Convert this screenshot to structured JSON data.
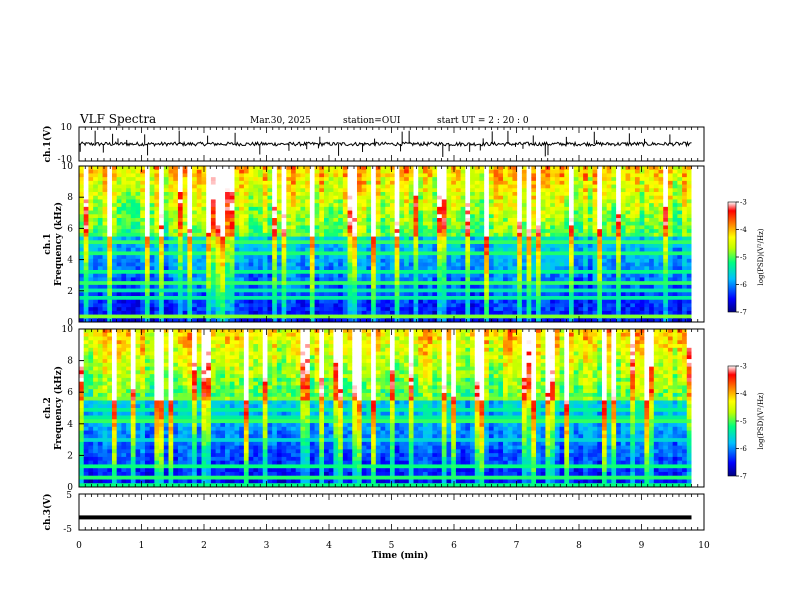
{
  "header": {
    "title": "VLF Spectra",
    "date": "Mar.30, 2025",
    "station": "station=OUI",
    "start_ut": "start  UT =   2 : 20 : 0"
  },
  "chart_data": [
    {
      "type": "line",
      "panel": "ch1-waveform",
      "ylabel": "ch.1(V)",
      "ylim": [
        -10,
        10
      ],
      "y_ticks": [
        "10",
        "-10"
      ],
      "x_range_min": [
        0,
        9.8
      ],
      "baseline_v": 0,
      "color": "#000000"
    },
    {
      "type": "heatmap",
      "panel": "ch1-spectrogram",
      "ylabel": "ch.1 Frequency (kHz)",
      "ylabel_lines": [
        "ch.1",
        "Frequency (kHz)"
      ],
      "ylim": [
        0,
        10
      ],
      "y_ticks": [
        "0",
        "2",
        "4",
        "6",
        "8",
        "10"
      ],
      "x_range_min": [
        0,
        9.8
      ],
      "colorbar": {
        "label": "log(PSD)(V²/Hz)",
        "range": [
          -7,
          -3
        ],
        "ticks": [
          "-3",
          "-4",
          "-5",
          "-6",
          "-7"
        ],
        "colormap": [
          "#000080",
          "#0000ff",
          "#00c0ff",
          "#00ff80",
          "#c0ff00",
          "#ffff00",
          "#ff8000",
          "#ff0000",
          "#ffffff"
        ]
      }
    },
    {
      "type": "heatmap",
      "panel": "ch2-spectrogram",
      "ylabel": "ch.2 Frequency (kHz)",
      "ylabel_lines": [
        "ch.2",
        "Frequency (kHz)"
      ],
      "ylim": [
        0,
        10
      ],
      "y_ticks": [
        "0",
        "2",
        "4",
        "6",
        "8",
        "10"
      ],
      "x_range_min": [
        0,
        9.8
      ],
      "colorbar": {
        "label": "log(PSD)(V²/Hz)",
        "range": [
          -7,
          -3
        ],
        "ticks": [
          "-3",
          "-4",
          "-5",
          "-6",
          "-7"
        ],
        "colormap": [
          "#000080",
          "#0000ff",
          "#00c0ff",
          "#00ff80",
          "#c0ff00",
          "#ffff00",
          "#ff8000",
          "#ff0000",
          "#ffffff"
        ]
      }
    },
    {
      "type": "line",
      "panel": "ch3-waveform",
      "ylabel": "ch.3(V)",
      "ylim": [
        -5,
        5
      ],
      "y_ticks": [
        "5",
        "-5"
      ],
      "x_range_min": [
        0,
        9.8
      ],
      "baseline_v": -1.5,
      "color": "#000000"
    }
  ],
  "x_axis": {
    "label": "Time (min)",
    "range": [
      0,
      10
    ],
    "ticks": [
      "0",
      "1",
      "2",
      "3",
      "4",
      "5",
      "6",
      "7",
      "8",
      "9",
      "10"
    ]
  }
}
